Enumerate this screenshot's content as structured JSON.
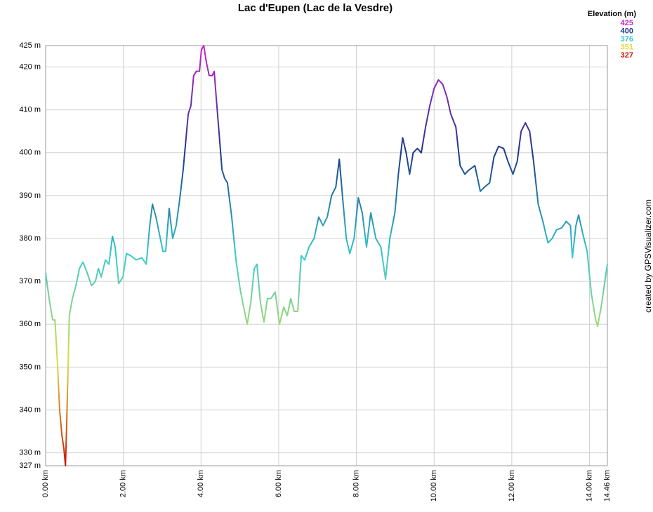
{
  "chart_data": {
    "type": "line",
    "title": "Lac d'Eupen (Lac de la Vesdre)",
    "side_note": "created by GPSVisualizer.com",
    "legend": {
      "title": "Elevation (m)",
      "position": "top-right",
      "stops": [
        {
          "value": 425,
          "color": "#cc22cc"
        },
        {
          "value": 400,
          "color": "#1a3a8c"
        },
        {
          "value": 376,
          "color": "#33cccc"
        },
        {
          "value": 351,
          "color": "#dddd44"
        },
        {
          "value": 327,
          "color": "#cc1100"
        }
      ]
    },
    "grid": true,
    "xlim": [
      0,
      14.46
    ],
    "ylim": [
      327,
      425
    ],
    "xticks": [
      {
        "value": 0,
        "label": "0.00 km"
      },
      {
        "value": 2,
        "label": "2.00 km"
      },
      {
        "value": 4,
        "label": "4.00 km"
      },
      {
        "value": 6,
        "label": "6.00 km"
      },
      {
        "value": 8,
        "label": "8.00 km"
      },
      {
        "value": 10,
        "label": "10.00 km"
      },
      {
        "value": 12,
        "label": "12.00 km"
      },
      {
        "value": 14,
        "label": "14.00 km"
      },
      {
        "value": 14.46,
        "label": "14.46 km"
      }
    ],
    "yticks": [
      {
        "value": 327,
        "label": "327 m"
      },
      {
        "value": 330,
        "label": "330 m"
      },
      {
        "value": 340,
        "label": "340 m"
      },
      {
        "value": 350,
        "label": "350 m"
      },
      {
        "value": 360,
        "label": "360 m"
      },
      {
        "value": 370,
        "label": "370 m"
      },
      {
        "value": 380,
        "label": "380 m"
      },
      {
        "value": 390,
        "label": "390 m"
      },
      {
        "value": 400,
        "label": "400 m"
      },
      {
        "value": 410,
        "label": "410 m"
      },
      {
        "value": 420,
        "label": "420 m"
      },
      {
        "value": 425,
        "label": "425 m"
      }
    ],
    "x": [
      0,
      0.09,
      0.18,
      0.24,
      0.31,
      0.36,
      0.42,
      0.47,
      0.51,
      0.54,
      0.58,
      0.61,
      0.69,
      0.78,
      0.87,
      0.96,
      1.07,
      1.18,
      1.28,
      1.36,
      1.43,
      1.54,
      1.63,
      1.72,
      1.79,
      1.88,
      1.99,
      2.08,
      2.19,
      2.33,
      2.48,
      2.59,
      2.68,
      2.75,
      2.84,
      2.93,
      3.02,
      3.09,
      3.18,
      3.27,
      3.36,
      3.45,
      3.54,
      3.6,
      3.67,
      3.74,
      3.81,
      3.88,
      3.96,
      4.01,
      4.07,
      4.14,
      4.21,
      4.29,
      4.34,
      4.39,
      4.47,
      4.54,
      4.61,
      4.68,
      4.79,
      4.9,
      5.01,
      5.12,
      5.19,
      5.28,
      5.37,
      5.44,
      5.53,
      5.62,
      5.71,
      5.8,
      5.91,
      6.02,
      6.13,
      6.22,
      6.31,
      6.4,
      6.49,
      6.58,
      6.67,
      6.78,
      6.91,
      7.03,
      7.14,
      7.25,
      7.36,
      7.47,
      7.56,
      7.65,
      7.74,
      7.83,
      7.94,
      8.05,
      8.15,
      8.26,
      8.37,
      8.5,
      8.63,
      8.75,
      8.86,
      8.99,
      9.08,
      9.19,
      9.28,
      9.37,
      9.46,
      9.57,
      9.67,
      9.78,
      9.89,
      10,
      10.11,
      10.22,
      10.33,
      10.43,
      10.56,
      10.67,
      10.79,
      10.9,
      11.05,
      11.19,
      11.3,
      11.43,
      11.54,
      11.66,
      11.79,
      11.9,
      12.03,
      12.14,
      12.24,
      12.35,
      12.46,
      12.56,
      12.68,
      12.8,
      12.93,
      13.04,
      13.15,
      13.29,
      13.4,
      13.51,
      13.56,
      13.65,
      13.72,
      13.83,
      13.94,
      14.05,
      14.16,
      14.21,
      14.3,
      14.46
    ],
    "series": [
      {
        "name": "Elevation",
        "values": [
          372,
          366,
          361,
          361,
          350,
          340,
          334,
          331,
          327,
          336,
          351,
          362,
          366,
          369,
          373,
          374.5,
          372,
          369,
          370,
          373,
          371,
          375,
          374,
          380.5,
          378,
          369.5,
          371,
          376.5,
          376,
          375,
          375.5,
          374,
          383,
          388,
          385,
          381,
          377,
          377,
          387,
          380,
          383,
          389,
          396,
          402,
          409,
          411,
          418,
          419,
          419,
          424,
          425,
          421,
          418,
          418,
          419,
          413,
          404,
          396,
          394,
          393,
          385,
          375,
          368,
          363,
          360,
          365,
          373,
          374,
          365,
          360.5,
          366,
          366,
          367.5,
          360,
          364,
          362,
          366,
          363,
          363,
          376,
          375,
          378,
          380,
          385,
          383,
          385,
          390,
          392,
          398.5,
          389,
          380,
          376.5,
          380,
          389.5,
          386,
          378,
          386,
          380,
          378,
          370.5,
          380,
          386,
          395,
          403.5,
          400,
          395,
          400,
          401,
          400,
          406,
          411,
          415,
          417,
          416,
          413,
          409,
          406,
          397,
          395,
          396,
          397,
          391,
          392,
          393,
          399,
          401.5,
          401,
          398,
          395,
          398,
          405,
          407,
          405,
          398,
          388,
          384,
          379,
          380,
          382,
          382.5,
          384,
          383,
          375.5,
          383,
          385.5,
          381,
          377,
          367,
          361,
          359.5,
          364,
          374
        ]
      }
    ]
  }
}
